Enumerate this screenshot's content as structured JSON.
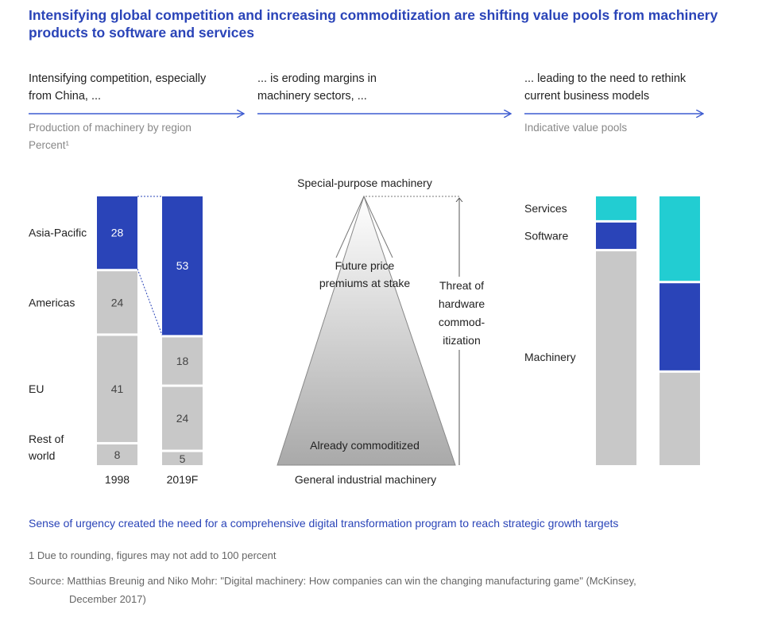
{
  "title": "Intensifying global competition and increasing commoditization are shifting value pools from machinery products to software and services",
  "columns": [
    {
      "head_line1": "Intensifying competition, especially",
      "head_line2": "from China, ...",
      "sub_line1": "Production of machinery by region",
      "sub_line2": "Percent¹"
    },
    {
      "head_line1": "... is eroding margins in",
      "head_line2": "machinery sectors, ..."
    },
    {
      "head_line1": "... leading to the need to rethink",
      "head_line2": "current business models",
      "sub_line1": "Indicative value pools"
    }
  ],
  "colors": {
    "blue": "#2a44b8",
    "gray": "#c8c8c8",
    "teal": "#22cdd2",
    "arrow": "#3d5bd0"
  },
  "chart_data": [
    {
      "type": "bar",
      "subtype": "stacked-100",
      "title": "Production of machinery by region",
      "ylabel": "Percent¹",
      "categories": [
        "1998",
        "2019F"
      ],
      "series": [
        {
          "name": "Asia-Pacific",
          "values": [
            28,
            53
          ]
        },
        {
          "name": "Americas",
          "values": [
            24,
            18
          ]
        },
        {
          "name": "EU",
          "values": [
            41,
            24
          ]
        },
        {
          "name": "Rest of world",
          "values": [
            8,
            5
          ]
        }
      ],
      "legend_labels": [
        "Asia-Pacific",
        "Americas",
        "EU",
        "Rest of",
        "world"
      ]
    },
    {
      "type": "diagram",
      "top_label": "Special-purpose machinery",
      "bottom_label": "General industrial machinery",
      "inner_top_line1": "Future price",
      "inner_top_line2": "premiums at stake",
      "inner_bottom": "Already commoditized",
      "side_lines": [
        "Threat of",
        "hardware",
        "commod-",
        "itization"
      ]
    },
    {
      "type": "bar",
      "subtype": "stacked-indicative",
      "title": "Indicative value pools",
      "series": [
        {
          "name": "Services",
          "values": [
            9,
            32
          ]
        },
        {
          "name": "Software",
          "values": [
            10,
            33
          ]
        },
        {
          "name": "Machinery",
          "values": [
            81,
            35
          ]
        }
      ]
    }
  ],
  "urgency": "Sense of urgency created the need for a comprehensive digital transformation program to reach strategic growth targets",
  "footnote": "1 Due to rounding, figures may not add to 100 percent",
  "source_line1": "Source: Matthias Breunig and Niko Mohr: \"Digital machinery: How companies can win the changing manufacturing game\" (McKinsey,",
  "source_line2": "December 2017)"
}
